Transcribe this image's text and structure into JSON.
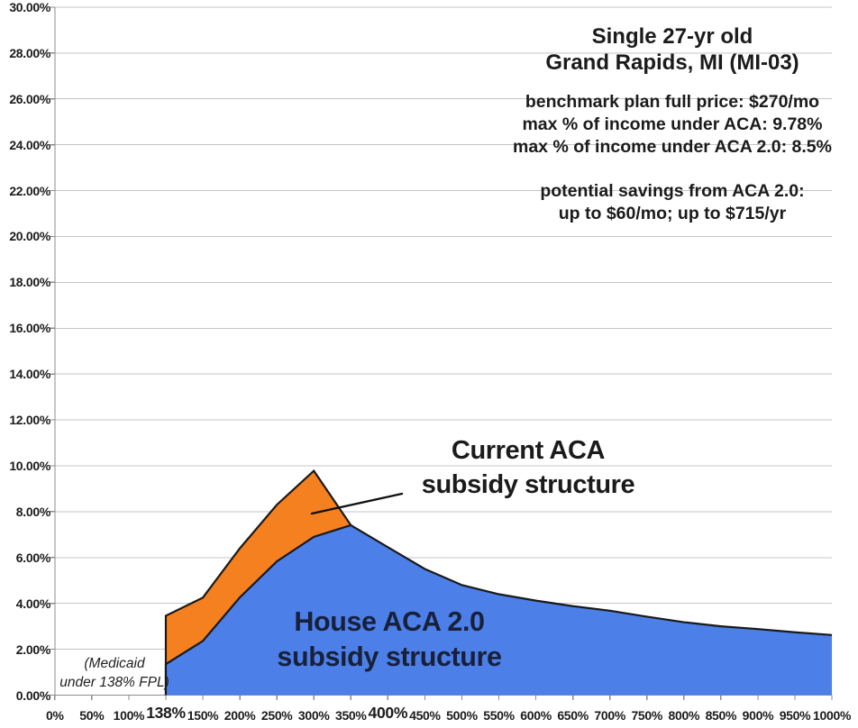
{
  "chart_data": {
    "type": "area",
    "title_lines": [
      "Single 27-yr old",
      "Grand Rapids, MI (MI-03)"
    ],
    "info_lines": [
      "benchmark plan full price: $270/mo",
      "max % of income under ACA: 9.78%",
      "max % of income under ACA 2.0: 8.5%"
    ],
    "savings_lines": [
      "potential savings from ACA 2.0:",
      "up to $60/mo; up to $715/yr"
    ],
    "categories": [
      "0%",
      "50%",
      "100%",
      "138%",
      "150%",
      "200%",
      "250%",
      "300%",
      "350%",
      "400%",
      "450%",
      "500%",
      "550%",
      "600%",
      "650%",
      "700%",
      "750%",
      "800%",
      "850%",
      "900%",
      "950%",
      "1000%"
    ],
    "emphasized_categories": [
      "138%",
      "400%"
    ],
    "y_ticks": [
      "0.00%",
      "2.00%",
      "4.00%",
      "6.00%",
      "8.00%",
      "10.00%",
      "12.00%",
      "14.00%",
      "16.00%",
      "18.00%",
      "20.00%",
      "22.00%",
      "24.00%",
      "26.00%",
      "28.00%",
      "30.00%"
    ],
    "ylim": [
      0,
      30
    ],
    "grid": true,
    "legend_position": "none",
    "series": [
      {
        "name": "Current ACA subsidy structure",
        "color": "#F5801F",
        "values": [
          null,
          null,
          null,
          3.46,
          4.25,
          6.4,
          8.3,
          9.78,
          7.41,
          null,
          null,
          null,
          null,
          null,
          null,
          null,
          null,
          null,
          null,
          null,
          null,
          null
        ]
      },
      {
        "name": "House ACA 2.0 subsidy structure",
        "color": "#4C7FE8",
        "values": [
          null,
          null,
          null,
          1.35,
          2.36,
          4.26,
          5.83,
          6.9,
          7.41,
          6.45,
          5.5,
          4.8,
          4.4,
          4.12,
          3.88,
          3.68,
          3.42,
          3.18,
          3.0,
          2.88,
          2.74,
          2.62
        ]
      }
    ],
    "annotations": {
      "current_label": [
        "Current ACA",
        "subsidy structure"
      ],
      "house_label": [
        "House ACA 2.0",
        "subsidy structure"
      ],
      "medicaid_note": [
        "(Medicaid",
        "under 138% FPL)"
      ]
    }
  },
  "colors": {
    "orange": "#F5801F",
    "blue": "#4C7FE8",
    "outline": "#1A1A1A",
    "gridline": "#C4C4C4",
    "axis": "#8C8C8C",
    "callout": "#111111",
    "house_label_text": "#18203A",
    "text": "#1B1B1B",
    "background": "#FFFFFF"
  }
}
